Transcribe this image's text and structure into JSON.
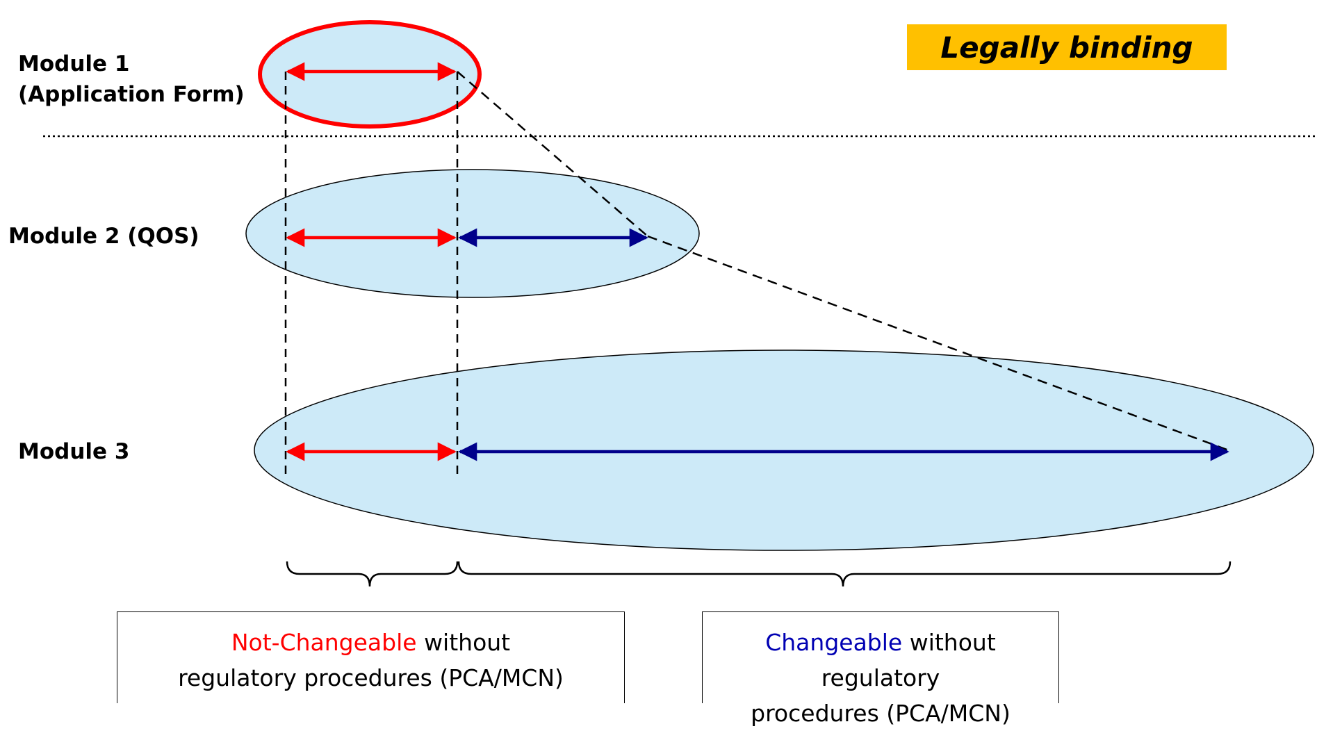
{
  "labels": {
    "module1_line1": "Module 1",
    "module1_line2": "(Application Form)",
    "module2": "Module 2 (QOS)",
    "module3": "Module 3"
  },
  "badge": {
    "text": "Legally binding"
  },
  "notes": {
    "left": {
      "highlight": "Not-Changeable",
      "rest_line1": " without",
      "line2": "regulatory procedures (PCA/MCN)"
    },
    "right": {
      "highlight": "Changeable",
      "rest_line1": " without regulatory",
      "line2": "procedures (PCA/MCN)"
    }
  },
  "colors": {
    "ellipse_fill": "#cdeaf8",
    "not_changeable": "#ff0000",
    "changeable": "#00008b",
    "badge_bg": "#ffc000"
  }
}
